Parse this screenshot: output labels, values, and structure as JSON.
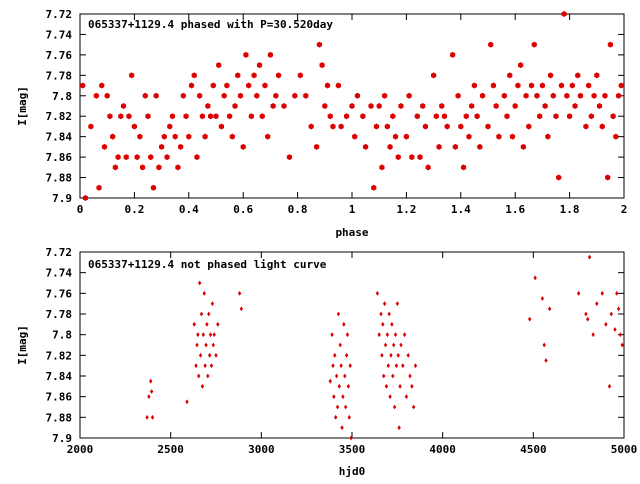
{
  "colors": {
    "marker": "#dd0000",
    "frame": "#000000",
    "background": "#ffffff"
  },
  "chart_data": [
    {
      "type": "scatter",
      "title": "065337+1129.4 phased with P=30.520day",
      "xlabel": "phase",
      "ylabel": "I[mag]",
      "xlim": [
        0,
        2
      ],
      "ylim": [
        7.9,
        7.72
      ],
      "y_inverted": true,
      "x_ticks": [
        "0",
        "0.2",
        "0.4",
        "0.6",
        "0.8",
        "1",
        "1.2",
        "1.4",
        "1.6",
        "1.8",
        "2"
      ],
      "y_ticks": [
        "7.72",
        "7.74",
        "7.76",
        "7.78",
        "7.8",
        "7.82",
        "7.84",
        "7.86",
        "7.88",
        "7.9"
      ],
      "grid": false,
      "marker": "filled-hexagon",
      "points": [
        [
          0.01,
          7.79
        ],
        [
          0.02,
          7.9
        ],
        [
          0.04,
          7.83
        ],
        [
          0.06,
          7.8
        ],
        [
          0.07,
          7.89
        ],
        [
          0.08,
          7.79
        ],
        [
          0.09,
          7.85
        ],
        [
          0.1,
          7.8
        ],
        [
          0.11,
          7.82
        ],
        [
          0.12,
          7.84
        ],
        [
          0.13,
          7.87
        ],
        [
          0.14,
          7.86
        ],
        [
          0.15,
          7.82
        ],
        [
          0.16,
          7.81
        ],
        [
          0.17,
          7.86
        ],
        [
          0.18,
          7.82
        ],
        [
          0.19,
          7.78
        ],
        [
          0.2,
          7.83
        ],
        [
          0.21,
          7.86
        ],
        [
          0.22,
          7.84
        ],
        [
          0.23,
          7.87
        ],
        [
          0.24,
          7.8
        ],
        [
          0.25,
          7.82
        ],
        [
          0.26,
          7.86
        ],
        [
          0.27,
          7.89
        ],
        [
          0.28,
          7.8
        ],
        [
          0.29,
          7.87
        ],
        [
          0.3,
          7.85
        ],
        [
          0.31,
          7.84
        ],
        [
          0.32,
          7.86
        ],
        [
          0.33,
          7.83
        ],
        [
          0.34,
          7.82
        ],
        [
          0.35,
          7.84
        ],
        [
          0.36,
          7.87
        ],
        [
          0.37,
          7.85
        ],
        [
          0.38,
          7.8
        ],
        [
          0.39,
          7.82
        ],
        [
          0.4,
          7.84
        ],
        [
          0.41,
          7.79
        ],
        [
          0.42,
          7.78
        ],
        [
          0.43,
          7.86
        ],
        [
          0.44,
          7.8
        ],
        [
          0.45,
          7.82
        ],
        [
          0.46,
          7.84
        ],
        [
          0.47,
          7.81
        ],
        [
          0.48,
          7.82
        ],
        [
          0.49,
          7.79
        ],
        [
          0.5,
          7.82
        ],
        [
          0.51,
          7.77
        ],
        [
          0.52,
          7.83
        ],
        [
          0.53,
          7.8
        ],
        [
          0.54,
          7.79
        ],
        [
          0.55,
          7.82
        ],
        [
          0.56,
          7.84
        ],
        [
          0.57,
          7.81
        ],
        [
          0.58,
          7.78
        ],
        [
          0.59,
          7.8
        ],
        [
          0.6,
          7.85
        ],
        [
          0.61,
          7.76
        ],
        [
          0.62,
          7.79
        ],
        [
          0.63,
          7.82
        ],
        [
          0.64,
          7.78
        ],
        [
          0.65,
          7.8
        ],
        [
          0.66,
          7.77
        ],
        [
          0.67,
          7.82
        ],
        [
          0.68,
          7.79
        ],
        [
          0.69,
          7.84
        ],
        [
          0.7,
          7.76
        ],
        [
          0.71,
          7.81
        ],
        [
          0.72,
          7.8
        ],
        [
          0.73,
          7.78
        ],
        [
          0.75,
          7.81
        ],
        [
          0.77,
          7.86
        ],
        [
          0.79,
          7.8
        ],
        [
          0.81,
          7.78
        ],
        [
          0.83,
          7.8
        ],
        [
          0.85,
          7.83
        ],
        [
          0.87,
          7.85
        ],
        [
          0.88,
          7.75
        ],
        [
          0.89,
          7.77
        ],
        [
          0.9,
          7.81
        ],
        [
          0.91,
          7.79
        ],
        [
          0.92,
          7.82
        ],
        [
          0.93,
          7.83
        ],
        [
          0.95,
          7.79
        ],
        [
          0.96,
          7.83
        ],
        [
          0.98,
          7.82
        ],
        [
          1.0,
          7.81
        ],
        [
          1.01,
          7.84
        ],
        [
          1.02,
          7.8
        ],
        [
          1.04,
          7.82
        ],
        [
          1.05,
          7.85
        ],
        [
          1.07,
          7.81
        ],
        [
          1.08,
          7.89
        ],
        [
          1.09,
          7.83
        ],
        [
          1.1,
          7.81
        ],
        [
          1.11,
          7.87
        ],
        [
          1.12,
          7.8
        ],
        [
          1.13,
          7.83
        ],
        [
          1.14,
          7.85
        ],
        [
          1.15,
          7.82
        ],
        [
          1.16,
          7.84
        ],
        [
          1.17,
          7.86
        ],
        [
          1.18,
          7.81
        ],
        [
          1.2,
          7.84
        ],
        [
          1.21,
          7.8
        ],
        [
          1.22,
          7.86
        ],
        [
          1.24,
          7.82
        ],
        [
          1.25,
          7.86
        ],
        [
          1.26,
          7.81
        ],
        [
          1.27,
          7.83
        ],
        [
          1.28,
          7.87
        ],
        [
          1.3,
          7.78
        ],
        [
          1.31,
          7.82
        ],
        [
          1.32,
          7.85
        ],
        [
          1.33,
          7.81
        ],
        [
          1.34,
          7.82
        ],
        [
          1.35,
          7.83
        ],
        [
          1.37,
          7.76
        ],
        [
          1.38,
          7.85
        ],
        [
          1.39,
          7.8
        ],
        [
          1.4,
          7.83
        ],
        [
          1.41,
          7.87
        ],
        [
          1.42,
          7.82
        ],
        [
          1.43,
          7.84
        ],
        [
          1.44,
          7.81
        ],
        [
          1.45,
          7.79
        ],
        [
          1.46,
          7.82
        ],
        [
          1.47,
          7.85
        ],
        [
          1.48,
          7.8
        ],
        [
          1.5,
          7.83
        ],
        [
          1.51,
          7.75
        ],
        [
          1.52,
          7.79
        ],
        [
          1.53,
          7.81
        ],
        [
          1.54,
          7.84
        ],
        [
          1.56,
          7.8
        ],
        [
          1.57,
          7.82
        ],
        [
          1.58,
          7.78
        ],
        [
          1.59,
          7.84
        ],
        [
          1.6,
          7.81
        ],
        [
          1.61,
          7.79
        ],
        [
          1.62,
          7.77
        ],
        [
          1.63,
          7.85
        ],
        [
          1.64,
          7.8
        ],
        [
          1.65,
          7.83
        ],
        [
          1.66,
          7.79
        ],
        [
          1.67,
          7.75
        ],
        [
          1.68,
          7.8
        ],
        [
          1.69,
          7.82
        ],
        [
          1.7,
          7.79
        ],
        [
          1.71,
          7.81
        ],
        [
          1.72,
          7.84
        ],
        [
          1.73,
          7.78
        ],
        [
          1.74,
          7.8
        ],
        [
          1.75,
          7.82
        ],
        [
          1.76,
          7.88
        ],
        [
          1.77,
          7.79
        ],
        [
          1.78,
          7.72
        ],
        [
          1.79,
          7.8
        ],
        [
          1.8,
          7.82
        ],
        [
          1.81,
          7.79
        ],
        [
          1.82,
          7.81
        ],
        [
          1.83,
          7.78
        ],
        [
          1.84,
          7.8
        ],
        [
          1.86,
          7.83
        ],
        [
          1.87,
          7.79
        ],
        [
          1.88,
          7.82
        ],
        [
          1.89,
          7.8
        ],
        [
          1.9,
          7.78
        ],
        [
          1.91,
          7.81
        ],
        [
          1.92,
          7.83
        ],
        [
          1.93,
          7.8
        ],
        [
          1.94,
          7.88
        ],
        [
          1.95,
          7.75
        ],
        [
          1.96,
          7.82
        ],
        [
          1.97,
          7.84
        ],
        [
          1.98,
          7.8
        ],
        [
          1.99,
          7.79
        ]
      ]
    },
    {
      "type": "scatter",
      "title": "065337+1129.4 not phased light curve",
      "xlabel": "hjd0",
      "ylabel": "I[mag]",
      "xlim": [
        2000,
        5000
      ],
      "ylim": [
        7.9,
        7.72
      ],
      "y_inverted": true,
      "x_ticks": [
        "2000",
        "2500",
        "3000",
        "3500",
        "4000",
        "4500",
        "5000"
      ],
      "y_ticks": [
        "7.72",
        "7.74",
        "7.76",
        "7.78",
        "7.8",
        "7.82",
        "7.84",
        "7.86",
        "7.88",
        "7.9"
      ],
      "grid": false,
      "marker": "small-diamond",
      "points": [
        [
          2370,
          7.88
        ],
        [
          2380,
          7.86
        ],
        [
          2390,
          7.845
        ],
        [
          2395,
          7.855
        ],
        [
          2400,
          7.88
        ],
        [
          2590,
          7.865
        ],
        [
          2630,
          7.79
        ],
        [
          2640,
          7.83
        ],
        [
          2645,
          7.81
        ],
        [
          2650,
          7.8
        ],
        [
          2655,
          7.84
        ],
        [
          2660,
          7.75
        ],
        [
          2665,
          7.82
        ],
        [
          2670,
          7.78
        ],
        [
          2675,
          7.85
        ],
        [
          2680,
          7.8
        ],
        [
          2685,
          7.76
        ],
        [
          2690,
          7.83
        ],
        [
          2695,
          7.81
        ],
        [
          2700,
          7.79
        ],
        [
          2705,
          7.84
        ],
        [
          2710,
          7.78
        ],
        [
          2715,
          7.82
        ],
        [
          2720,
          7.8
        ],
        [
          2725,
          7.83
        ],
        [
          2730,
          7.77
        ],
        [
          2735,
          7.81
        ],
        [
          2740,
          7.8
        ],
        [
          2750,
          7.82
        ],
        [
          2760,
          7.79
        ],
        [
          2880,
          7.76
        ],
        [
          2890,
          7.775
        ],
        [
          3380,
          7.845
        ],
        [
          3390,
          7.8
        ],
        [
          3395,
          7.83
        ],
        [
          3400,
          7.86
        ],
        [
          3405,
          7.82
        ],
        [
          3410,
          7.88
        ],
        [
          3415,
          7.84
        ],
        [
          3420,
          7.87
        ],
        [
          3425,
          7.78
        ],
        [
          3430,
          7.85
        ],
        [
          3435,
          7.81
        ],
        [
          3440,
          7.83
        ],
        [
          3445,
          7.89
        ],
        [
          3450,
          7.86
        ],
        [
          3455,
          7.79
        ],
        [
          3460,
          7.84
        ],
        [
          3465,
          7.87
        ],
        [
          3470,
          7.82
        ],
        [
          3475,
          7.8
        ],
        [
          3480,
          7.85
        ],
        [
          3485,
          7.88
        ],
        [
          3490,
          7.83
        ],
        [
          3495,
          7.9
        ],
        [
          3640,
          7.76
        ],
        [
          3650,
          7.8
        ],
        [
          3660,
          7.78
        ],
        [
          3665,
          7.82
        ],
        [
          3670,
          7.79
        ],
        [
          3675,
          7.84
        ],
        [
          3680,
          7.77
        ],
        [
          3685,
          7.81
        ],
        [
          3690,
          7.85
        ],
        [
          3695,
          7.8
        ],
        [
          3700,
          7.83
        ],
        [
          3705,
          7.78
        ],
        [
          3710,
          7.86
        ],
        [
          3715,
          7.82
        ],
        [
          3720,
          7.79
        ],
        [
          3725,
          7.84
        ],
        [
          3730,
          7.81
        ],
        [
          3735,
          7.87
        ],
        [
          3740,
          7.8
        ],
        [
          3745,
          7.83
        ],
        [
          3750,
          7.77
        ],
        [
          3755,
          7.82
        ],
        [
          3760,
          7.89
        ],
        [
          3765,
          7.85
        ],
        [
          3770,
          7.81
        ],
        [
          3780,
          7.83
        ],
        [
          3790,
          7.8
        ],
        [
          3800,
          7.86
        ],
        [
          3810,
          7.82
        ],
        [
          3820,
          7.84
        ],
        [
          3830,
          7.85
        ],
        [
          3840,
          7.87
        ],
        [
          3850,
          7.83
        ],
        [
          4480,
          7.785
        ],
        [
          4510,
          7.745
        ],
        [
          4550,
          7.765
        ],
        [
          4560,
          7.81
        ],
        [
          4570,
          7.825
        ],
        [
          4590,
          7.775
        ],
        [
          4750,
          7.76
        ],
        [
          4790,
          7.78
        ],
        [
          4800,
          7.785
        ],
        [
          4810,
          7.725
        ],
        [
          4830,
          7.8
        ],
        [
          4850,
          7.77
        ],
        [
          4880,
          7.76
        ],
        [
          4900,
          7.79
        ],
        [
          4920,
          7.85
        ],
        [
          4930,
          7.78
        ],
        [
          4950,
          7.795
        ],
        [
          4960,
          7.76
        ],
        [
          4970,
          7.775
        ],
        [
          4980,
          7.8
        ],
        [
          4990,
          7.81
        ]
      ]
    }
  ]
}
